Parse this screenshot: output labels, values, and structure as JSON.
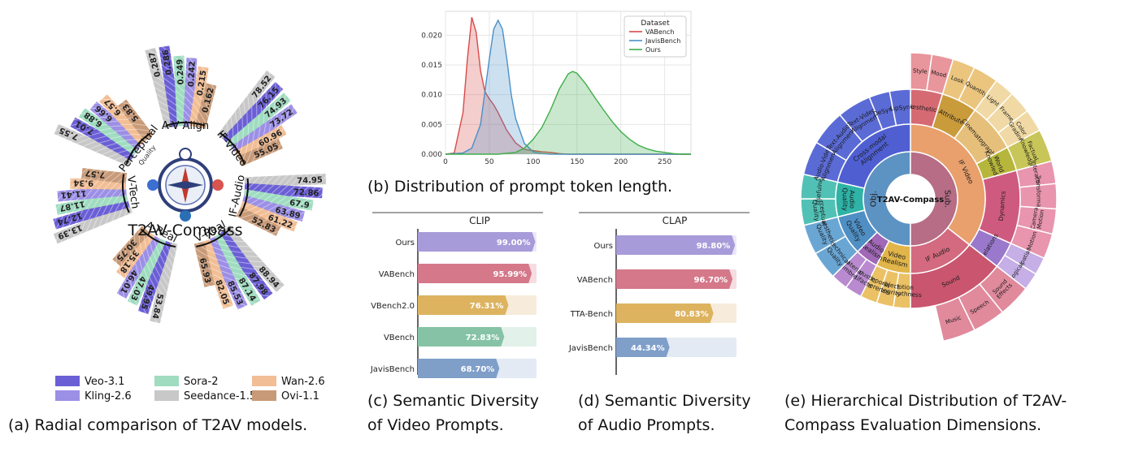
{
  "colors": {
    "veo": "#6b5fd6",
    "kling": "#9c8fe6",
    "sora": "#9fdcc0",
    "seedance": "#c8c8c8",
    "wan": "#f1be95",
    "ovi": "#c89a78",
    "vabench": "#d94a4a",
    "javisbench": "#4a90c8",
    "ours": "#3fae4a"
  },
  "panel_a": {
    "caption": "(a) Radial comparison of T2AV models.",
    "center_title": "T2AV-Compass",
    "legend": [
      {
        "name": "Veo-3.1",
        "color": "#6b5fd6"
      },
      {
        "name": "Sora-2",
        "color": "#9fdcc0"
      },
      {
        "name": "Wan-2.6",
        "color": "#f1be95"
      },
      {
        "name": "Kling-2.6",
        "color": "#9c8fe6"
      },
      {
        "name": "Seedance-1.5",
        "color": "#c8c8c8"
      },
      {
        "name": "Ovi-1.1",
        "color": "#c89a78"
      }
    ],
    "groups": [
      {
        "label": "A-V Align",
        "values": [
          "0.287",
          "0.286",
          "0.249",
          "0.242",
          "0.215",
          "0.162"
        ]
      },
      {
        "label": "IF-Video",
        "values": [
          "78.52",
          "76.15",
          "74.93",
          "73.72",
          "60.96",
          "55.05"
        ]
      },
      {
        "label": "IF-Audio",
        "values": [
          "74.95",
          "72.86",
          "67.9",
          "63.89",
          "61.22",
          "52.83"
        ]
      },
      {
        "label": "V-Real",
        "values": [
          "88.94",
          "87.98",
          "87.14",
          "85.53",
          "82.05",
          "65.93"
        ]
      },
      {
        "label": "A-Real",
        "values": [
          "53.84",
          "49.95",
          "47.03",
          "46.01",
          "35.18",
          "30.75"
        ]
      },
      {
        "label": "V-Tech",
        "values": [
          "13.39",
          "12.74",
          "11.87",
          "11.41",
          "9.34",
          "7.57"
        ]
      },
      {
        "label": "Perceptual",
        "sublabel": "Quality",
        "values": [
          "7.55",
          "7.01",
          "6.88",
          "6.66",
          "6.57",
          "5.83"
        ]
      }
    ]
  },
  "panel_b": {
    "caption": "(b) Distribution of prompt token length.",
    "chart_data": {
      "type": "area",
      "legend_title": "Dataset",
      "legend_placement": "top-right",
      "grid": true,
      "xlim": [
        0,
        280
      ],
      "ylim": [
        0,
        0.024
      ],
      "xticks": [
        "0",
        "50",
        "100",
        "150",
        "200",
        "250"
      ],
      "yticks": [
        "0.000",
        "0.005",
        "0.010",
        "0.015",
        "0.020"
      ],
      "series": [
        {
          "name": "VABench",
          "color": "#d94a4a",
          "x": [
            0,
            10,
            20,
            25,
            30,
            35,
            40,
            45,
            50,
            55,
            60,
            65,
            70,
            80,
            90,
            100,
            110,
            120,
            130,
            140,
            150,
            160,
            180,
            200,
            220,
            250,
            280
          ],
          "y": [
            0,
            0.0002,
            0.007,
            0.016,
            0.023,
            0.0205,
            0.014,
            0.0105,
            0.0093,
            0.0083,
            0.007,
            0.0055,
            0.004,
            0.0019,
            0.0008,
            0.0006,
            0.0004,
            0.0003,
            0.0001,
            0,
            0,
            0,
            0,
            0,
            0,
            0,
            0
          ]
        },
        {
          "name": "JavisBench",
          "color": "#4a90c8",
          "x": [
            0,
            20,
            30,
            40,
            50,
            55,
            60,
            65,
            70,
            75,
            80,
            90,
            100,
            110,
            120,
            140,
            160,
            180,
            200,
            220,
            250,
            280
          ],
          "y": [
            0,
            0.0002,
            0.001,
            0.005,
            0.016,
            0.021,
            0.0225,
            0.021,
            0.016,
            0.01,
            0.006,
            0.0018,
            0.0004,
            0.0001,
            0,
            0,
            0,
            0,
            0,
            0,
            0,
            0
          ]
        },
        {
          "name": "Ours",
          "color": "#3fae4a",
          "x": [
            0,
            60,
            80,
            90,
            100,
            110,
            120,
            130,
            140,
            145,
            150,
            160,
            170,
            180,
            190,
            200,
            210,
            220,
            230,
            240,
            250,
            260,
            270,
            280
          ],
          "y": [
            0,
            0,
            0.0003,
            0.001,
            0.0025,
            0.0045,
            0.0075,
            0.011,
            0.0135,
            0.0139,
            0.0136,
            0.0118,
            0.0096,
            0.0075,
            0.0055,
            0.0038,
            0.0025,
            0.0015,
            0.0009,
            0.0005,
            0.0003,
            0.0001,
            0,
            0
          ]
        }
      ]
    }
  },
  "panel_c": {
    "caption_line1": "(c) Semantic Diversity",
    "caption_line2": "of Video Prompts.",
    "chart_data": {
      "type": "bar",
      "title": "CLIP",
      "categories": [
        "Ours",
        "VABench",
        "VBench2.0",
        "VBench",
        "JavisBench"
      ],
      "values": [
        99.0,
        95.99,
        76.31,
        72.83,
        68.7
      ],
      "labels": [
        "99.00%",
        "95.99%",
        "76.31%",
        "72.83%",
        "68.70%"
      ],
      "colors": [
        "#a89bd9",
        "#d4788a",
        "#ddb35f",
        "#86c3a6",
        "#7f9fc9"
      ],
      "track_colors": [
        "#ece8f7",
        "#f5dde2",
        "#f7ecdb",
        "#e2f1e9",
        "#e3eaf3"
      ],
      "xlim": [
        0,
        100
      ]
    }
  },
  "panel_d": {
    "caption_line1": "(d) Semantic Diversity",
    "caption_line2": "of Audio Prompts.",
    "chart_data": {
      "type": "bar",
      "title": "CLAP",
      "categories": [
        "Ours",
        "VABench",
        "TTA-Bench",
        "JavisBench"
      ],
      "values": [
        98.8,
        96.7,
        80.83,
        44.34
      ],
      "labels": [
        "98.80%",
        "96.70%",
        "80.83%",
        "44.34%"
      ],
      "colors": [
        "#a89bd9",
        "#d4788a",
        "#ddb35f",
        "#7f9fc9"
      ],
      "track_colors": [
        "#ece8f7",
        "#f5dde2",
        "#f7ecdb",
        "#e3eaf3"
      ],
      "xlim": [
        0,
        100
      ]
    }
  },
  "panel_e": {
    "caption_line1": "(e) Hierarchical Distribution of T2AV-",
    "caption_line2": "Compass Evaluation Dimensions.",
    "center": "T2AV-Compass",
    "inner": [
      {
        "label": "Obj.",
        "color": "#5d93c2",
        "start": 180,
        "end": 360
      },
      {
        "label": "Sub.",
        "color": "#b66d85",
        "start": 0,
        "end": 180
      }
    ],
    "middle": [
      {
        "label": "IF Video",
        "color": "#e9a06c",
        "start": 0,
        "end": 128
      },
      {
        "label": "IF Audio",
        "color": "#d36a7f",
        "start": 128,
        "end": 180
      },
      {
        "label": "Video Realism",
        "color": "#e1b549",
        "start": 180,
        "end": 207
      },
      {
        "label": "Audio Realism",
        "color": "#a068b6",
        "start": 207,
        "end": 225
      },
      {
        "label": "Video Quality",
        "color": "#4f8fc4",
        "start": 225,
        "end": 256
      },
      {
        "label": "Audio Quality",
        "color": "#2fb3a6",
        "start": 256,
        "end": 283
      },
      {
        "label": "Cross-modal Alignment",
        "color": "#4f5fd1",
        "start": 283,
        "end": 360
      }
    ],
    "outer": [
      {
        "label": "Aesthetics",
        "color": "#d66a73",
        "start": 0,
        "end": 17
      },
      {
        "label": "Attribute",
        "color": "#c99b3b",
        "start": 17,
        "end": 36
      },
      {
        "label": "Cinematography",
        "color": "#e6c07a",
        "start": 36,
        "end": 62
      },
      {
        "label": "World Knowledge",
        "color": "#b6b63c",
        "start": 62,
        "end": 75
      },
      {
        "label": "Dynamics",
        "color": "#cf5a80",
        "start": 75,
        "end": 114
      },
      {
        "label": "Relations",
        "color": "#9a78cc",
        "start": 114,
        "end": 128
      },
      {
        "label": "Sound",
        "color": "#c9566e",
        "start": 128,
        "end": 180
      },
      {
        "label": "Motion Smoothness",
        "color": "#ebc165",
        "start": 180,
        "end": 189
      },
      {
        "label": "Object Integrity",
        "color": "#ebc165",
        "start": 189,
        "end": 198
      },
      {
        "label": "Temporal Coherence",
        "color": "#ebc165",
        "start": 198,
        "end": 207
      },
      {
        "label": "Acoustic Artifacts",
        "color": "#b98ad0",
        "start": 207,
        "end": 216
      },
      {
        "label": "Material Timbre",
        "color": "#b98ad0",
        "start": 216,
        "end": 225
      },
      {
        "label": "Technical Quality",
        "color": "#6aa6d4",
        "start": 225,
        "end": 240
      },
      {
        "label": "Aesthetic Quality",
        "color": "#6aa6d4",
        "start": 240,
        "end": 256
      },
      {
        "label": "Perceptual Quality",
        "color": "#52c1b5",
        "start": 256,
        "end": 270
      },
      {
        "label": "Usefulness",
        "color": "#52c1b5",
        "start": 270,
        "end": 283
      },
      {
        "label": "Audio-Video Alignment",
        "color": "#5b6bd6",
        "start": 283,
        "end": 301
      },
      {
        "label": "Text-Audio Alignment",
        "color": "#5b6bd6",
        "start": 301,
        "end": 320
      },
      {
        "label": "Text-Video Alignment",
        "color": "#5b6bd6",
        "start": 320,
        "end": 338
      },
      {
        "label": "DeSync",
        "color": "#5b6bd6",
        "start": 338,
        "end": 349
      },
      {
        "label": "LipSync",
        "color": "#5b6bd6",
        "start": 349,
        "end": 360
      }
    ],
    "leaves": [
      {
        "label": "Style",
        "color": "#e8959c",
        "start": 0,
        "end": 8.5
      },
      {
        "label": "Mood",
        "color": "#e8959c",
        "start": 8.5,
        "end": 17
      },
      {
        "label": "Look",
        "color": "#ebc57e",
        "start": 17,
        "end": 26
      },
      {
        "label": "Quantity",
        "color": "#ebc57e",
        "start": 26,
        "end": 36
      },
      {
        "label": "Light",
        "color": "#f0d9a4",
        "start": 36,
        "end": 44
      },
      {
        "label": "Frame",
        "color": "#f0d9a4",
        "start": 44,
        "end": 53
      },
      {
        "label": "Color Grading",
        "color": "#f0d9a4",
        "start": 53,
        "end": 62
      },
      {
        "label": "Factual Knowledge",
        "color": "#c9c659",
        "start": 62,
        "end": 75
      },
      {
        "label": "Interaction",
        "color": "#e895ad",
        "start": 75,
        "end": 84
      },
      {
        "label": "Transformation",
        "color": "#e895ad",
        "start": 84,
        "end": 94
      },
      {
        "label": "Camera Motion",
        "color": "#e895ad",
        "start": 94,
        "end": 104
      },
      {
        "label": "Motion",
        "color": "#e895ad",
        "start": 104,
        "end": 114
      },
      {
        "label": "Spatial",
        "color": "#c6aee6",
        "start": 114,
        "end": 121
      },
      {
        "label": "Logical",
        "color": "#c6aee6",
        "start": 121,
        "end": 128
      },
      {
        "label": "Sound Effects",
        "color": "#e08a9c",
        "start": 128,
        "end": 141
      },
      {
        "label": "Speech",
        "color": "#e08a9c",
        "start": 141,
        "end": 154
      },
      {
        "label": "Music",
        "color": "#e08a9c",
        "start": 154,
        "end": 167
      }
    ]
  }
}
